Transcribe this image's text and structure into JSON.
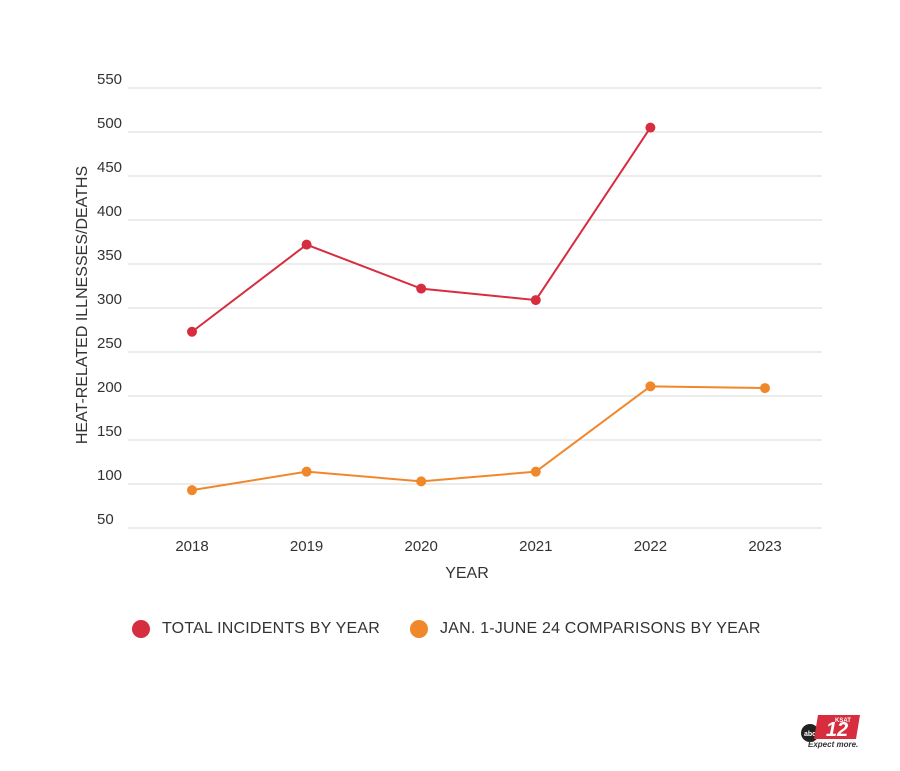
{
  "chart_data": {
    "type": "line",
    "categories": [
      "2018",
      "2019",
      "2020",
      "2021",
      "2022",
      "2023"
    ],
    "series": [
      {
        "name": "TOTAL INCIDENTS BY YEAR",
        "color": "#d62d3f",
        "values": [
          273,
          372,
          322,
          309,
          505,
          null
        ]
      },
      {
        "name": "JAN. 1-JUNE 24 COMPARISONS BY YEAR",
        "color": "#f0872a",
        "values": [
          93,
          114,
          103,
          114,
          211,
          209
        ]
      }
    ],
    "xlabel": "YEAR",
    "ylabel": "HEAT-RELATED ILLNESSES/DEATHS",
    "ylim": [
      50,
      550
    ],
    "yticks": [
      50,
      100,
      150,
      200,
      250,
      300,
      350,
      400,
      450,
      500,
      550
    ],
    "grid": true,
    "legend_position": "bottom"
  },
  "logo": {
    "brand": "KSAT 12",
    "network": "abc",
    "tagline": "Expect more."
  }
}
